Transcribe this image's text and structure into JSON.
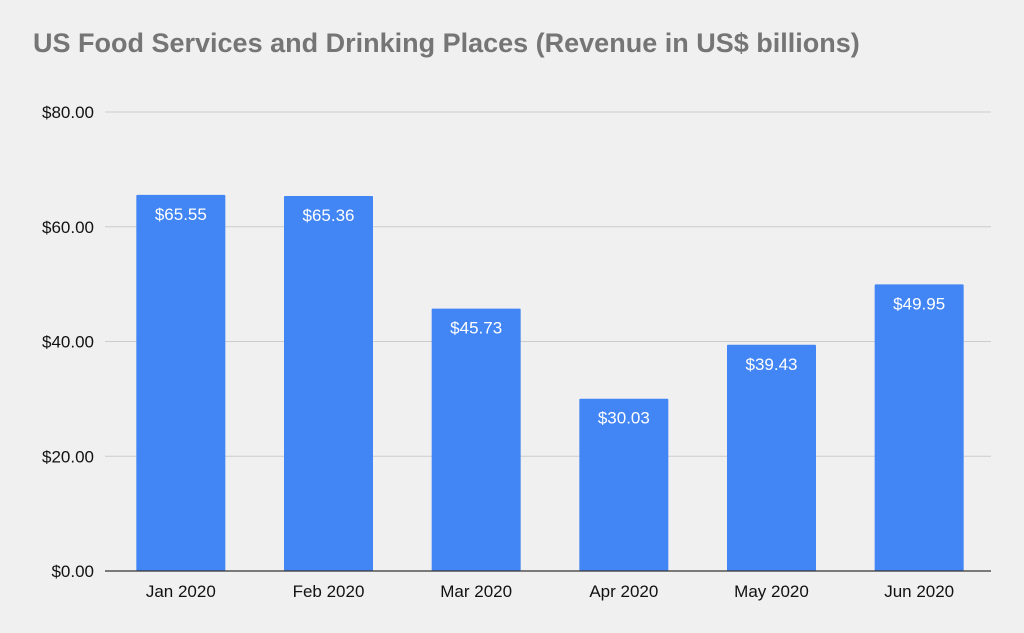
{
  "chart_data": {
    "type": "bar",
    "title": "US Food Services and Drinking Places (Revenue in US$ billions)",
    "xlabel": "",
    "ylabel": "",
    "categories": [
      "Jan 2020",
      "Feb 2020",
      "Mar 2020",
      "Apr 2020",
      "May 2020",
      "Jun 2020"
    ],
    "values": [
      65.55,
      65.36,
      45.73,
      30.03,
      39.43,
      49.95
    ],
    "data_labels": [
      "$65.55",
      "$65.36",
      "$45.73",
      "$30.03",
      "$39.43",
      "$49.95"
    ],
    "ylim": [
      0,
      80
    ],
    "yticks": [
      0,
      20,
      40,
      60,
      80
    ],
    "ytick_labels": [
      "$0.00",
      "$20.00",
      "$40.00",
      "$60.00",
      "$80.00"
    ],
    "grid": true,
    "legend": "none",
    "colors": {
      "bar": "#4285f4",
      "grid": "#cccccc",
      "axis": "#333333",
      "background": "#f0f0f0",
      "title": "#757575"
    }
  }
}
